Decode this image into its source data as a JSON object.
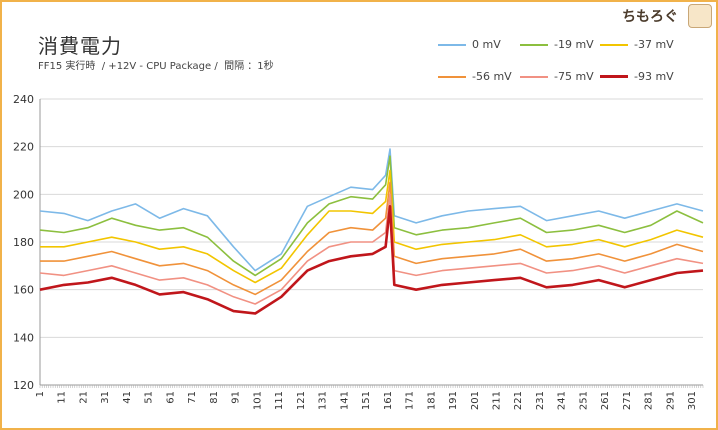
{
  "chart_data": {
    "type": "line",
    "title": "消費電力",
    "subtitle": "FF15 実行時  / +12V - CPU Package /  間隔 ：1秒",
    "xlabel": "",
    "ylabel": "",
    "ylim": [
      120,
      240
    ],
    "yticks": [
      "120",
      "140",
      "160",
      "180",
      "200",
      "220",
      "240"
    ],
    "xlim": [
      1,
      306
    ],
    "xticks": [
      "1",
      "11",
      "21",
      "31",
      "41",
      "51",
      "61",
      "71",
      "81",
      "91",
      "101",
      "111",
      "121",
      "131",
      "141",
      "151",
      "161",
      "171",
      "181",
      "191",
      "201",
      "211",
      "221",
      "231",
      "241",
      "251",
      "261",
      "271",
      "281",
      "291",
      "301"
    ],
    "grid": true,
    "legend_position": "top-right",
    "series": [
      {
        "name": "0 mV",
        "color": "#7db9e8",
        "x": [
          1,
          12,
          23,
          34,
          45,
          56,
          67,
          78,
          90,
          100,
          112,
          124,
          134,
          144,
          154,
          160,
          162,
          164,
          174,
          186,
          198,
          210,
          222,
          234,
          246,
          258,
          270,
          282,
          294,
          306
        ],
        "y": [
          193,
          192,
          189,
          193,
          196,
          190,
          194,
          191,
          178,
          168,
          175,
          195,
          199,
          203,
          202,
          208,
          219,
          191,
          188,
          191,
          193,
          194,
          195,
          189,
          191,
          193,
          190,
          193,
          196,
          193
        ]
      },
      {
        "name": "-19 mV",
        "color": "#8cbf3f",
        "x": [
          1,
          12,
          23,
          34,
          45,
          56,
          67,
          78,
          90,
          100,
          112,
          124,
          134,
          144,
          154,
          160,
          162,
          164,
          174,
          186,
          198,
          210,
          222,
          234,
          246,
          258,
          270,
          282,
          294,
          306
        ],
        "y": [
          185,
          184,
          186,
          190,
          187,
          185,
          186,
          182,
          172,
          166,
          173,
          188,
          196,
          199,
          198,
          204,
          216,
          186,
          183,
          185,
          186,
          188,
          190,
          184,
          185,
          187,
          184,
          187,
          193,
          188
        ]
      },
      {
        "name": "-37 mV",
        "color": "#f2c500",
        "x": [
          1,
          12,
          23,
          34,
          45,
          56,
          67,
          78,
          90,
          100,
          112,
          124,
          134,
          144,
          154,
          160,
          162,
          164,
          174,
          186,
          198,
          210,
          222,
          234,
          246,
          258,
          270,
          282,
          294,
          306
        ],
        "y": [
          178,
          178,
          180,
          182,
          180,
          177,
          178,
          175,
          168,
          163,
          169,
          183,
          193,
          193,
          192,
          197,
          210,
          180,
          177,
          179,
          180,
          181,
          183,
          178,
          179,
          181,
          178,
          181,
          185,
          182
        ]
      },
      {
        "name": "-56 mV",
        "color": "#f0923a",
        "x": [
          1,
          12,
          23,
          34,
          45,
          56,
          67,
          78,
          90,
          100,
          112,
          124,
          134,
          144,
          154,
          160,
          162,
          164,
          174,
          186,
          198,
          210,
          222,
          234,
          246,
          258,
          270,
          282,
          294,
          306
        ],
        "y": [
          172,
          172,
          174,
          176,
          173,
          170,
          171,
          168,
          162,
          158,
          164,
          176,
          184,
          186,
          185,
          190,
          205,
          174,
          171,
          173,
          174,
          175,
          177,
          172,
          173,
          175,
          172,
          175,
          179,
          176
        ]
      },
      {
        "name": "-75 mV",
        "color": "#f19183",
        "x": [
          1,
          12,
          23,
          34,
          45,
          56,
          67,
          78,
          90,
          100,
          112,
          124,
          134,
          144,
          154,
          160,
          162,
          164,
          174,
          186,
          198,
          210,
          222,
          234,
          246,
          258,
          270,
          282,
          294,
          306
        ],
        "y": [
          167,
          166,
          168,
          170,
          167,
          164,
          165,
          162,
          157,
          154,
          160,
          172,
          178,
          180,
          180,
          184,
          200,
          168,
          166,
          168,
          169,
          170,
          171,
          167,
          168,
          170,
          167,
          170,
          173,
          171
        ]
      },
      {
        "name": "-93 mV",
        "color": "#c0161b",
        "x": [
          1,
          12,
          23,
          34,
          45,
          56,
          67,
          78,
          90,
          100,
          112,
          124,
          134,
          144,
          154,
          160,
          162,
          164,
          174,
          186,
          198,
          210,
          222,
          234,
          246,
          258,
          270,
          282,
          294,
          306
        ],
        "y": [
          160,
          162,
          163,
          165,
          162,
          158,
          159,
          156,
          151,
          150,
          157,
          168,
          172,
          174,
          175,
          178,
          195,
          162,
          160,
          162,
          163,
          164,
          165,
          161,
          162,
          164,
          161,
          164,
          167,
          168
        ]
      }
    ]
  },
  "logo": {
    "text": "ちもろぐ"
  }
}
